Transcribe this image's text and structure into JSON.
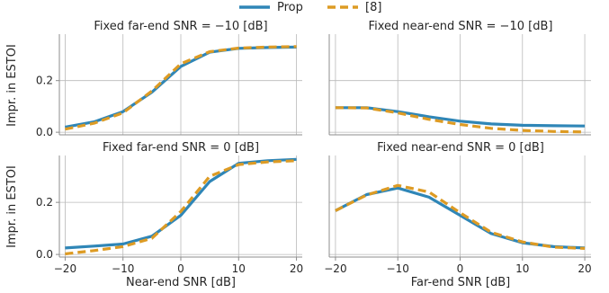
{
  "legend": {
    "entries": [
      {
        "label": "Prop",
        "color": "#2f86b7",
        "style": "solid"
      },
      {
        "label": "[8]",
        "color": "#dd9b24",
        "style": "dashed"
      }
    ],
    "placement": "top-center"
  },
  "shared": {
    "ylabel": "Impr. in ESTOI",
    "xlabel_left": "Near-end SNR [dB]",
    "xlabel_right": "Far-end SNR [dB]",
    "xticks": [
      -20,
      -10,
      0,
      10,
      20
    ],
    "yticks": [
      0.0,
      0.2
    ],
    "xlim": [
      -21,
      21
    ],
    "ylim": [
      -0.01,
      0.38
    ]
  },
  "chart_data": [
    {
      "type": "line",
      "title": "Fixed far-end SNR = −10 [dB]",
      "x": [
        -20,
        -15,
        -10,
        -5,
        0,
        5,
        10,
        15,
        20
      ],
      "series": [
        {
          "name": "Prop",
          "values": [
            0.02,
            0.04,
            0.08,
            0.155,
            0.255,
            0.31,
            0.325,
            0.328,
            0.33
          ]
        },
        {
          "name": "[8]",
          "values": [
            0.012,
            0.035,
            0.075,
            0.16,
            0.265,
            0.312,
            0.326,
            0.33,
            0.332
          ]
        }
      ]
    },
    {
      "type": "line",
      "title": "Fixed near-end SNR = −10 [dB]",
      "x": [
        -20,
        -15,
        -10,
        -5,
        0,
        5,
        10,
        15,
        20
      ],
      "series": [
        {
          "name": "Prop",
          "values": [
            0.095,
            0.095,
            0.08,
            0.06,
            0.043,
            0.032,
            0.027,
            0.025,
            0.024
          ]
        },
        {
          "name": "[8]",
          "values": [
            0.095,
            0.094,
            0.075,
            0.05,
            0.03,
            0.015,
            0.007,
            0.003,
            0.001
          ]
        }
      ]
    },
    {
      "type": "line",
      "title": "Fixed far-end SNR = 0 [dB]",
      "x": [
        -20,
        -15,
        -10,
        -5,
        0,
        5,
        10,
        15,
        20
      ],
      "series": [
        {
          "name": "Prop",
          "values": [
            0.025,
            0.032,
            0.04,
            0.07,
            0.15,
            0.28,
            0.35,
            0.36,
            0.365
          ]
        },
        {
          "name": "[8]",
          "values": [
            0.002,
            0.015,
            0.03,
            0.062,
            0.165,
            0.3,
            0.345,
            0.355,
            0.36
          ]
        }
      ]
    },
    {
      "type": "line",
      "title": "Fixed near-end SNR = 0 [dB]",
      "x": [
        -20,
        -15,
        -10,
        -5,
        0,
        5,
        10,
        15,
        20
      ],
      "series": [
        {
          "name": "Prop",
          "values": [
            0.168,
            0.23,
            0.255,
            0.22,
            0.15,
            0.08,
            0.045,
            0.03,
            0.025
          ]
        },
        {
          "name": "[8]",
          "values": [
            0.168,
            0.228,
            0.265,
            0.24,
            0.16,
            0.085,
            0.048,
            0.028,
            0.023
          ]
        }
      ]
    }
  ]
}
